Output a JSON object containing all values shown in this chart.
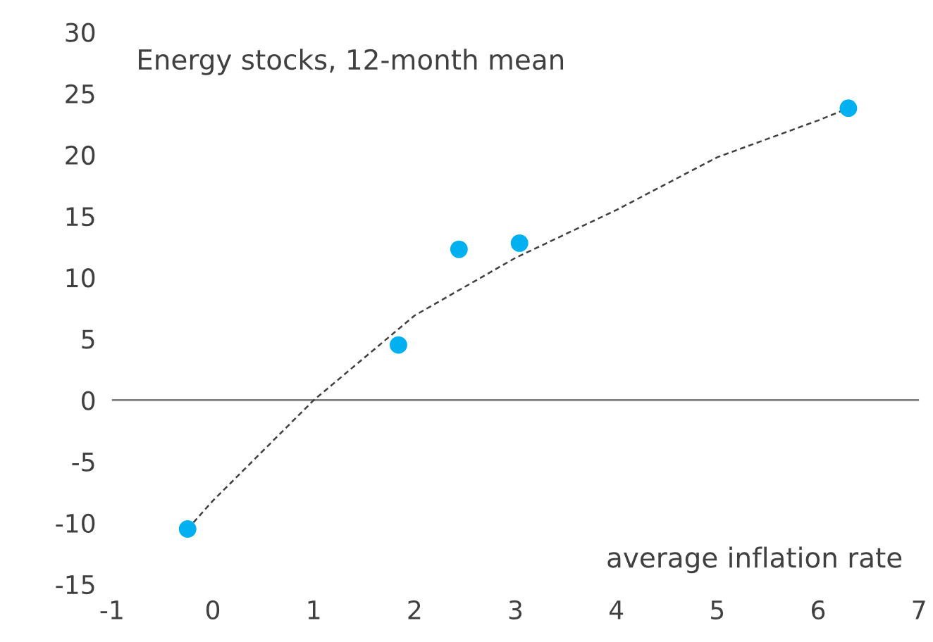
{
  "chart_data": {
    "type": "scatter",
    "title": "Energy stocks, 12-month mean",
    "xlabel": "average inflation rate",
    "series": [
      {
        "color": "#00b0f0",
        "x": [
          -0.25,
          1.84,
          2.44,
          3.04,
          6.3
        ],
        "values": [
          -10.5,
          4.5,
          12.3,
          12.8,
          23.8
        ],
        "marker": "circle"
      },
      {
        "type": "line",
        "color": "#404040",
        "x": [
          -0.25,
          0,
          1,
          2,
          3,
          4,
          5,
          6,
          6.3
        ],
        "values": [
          -10.5,
          -8.2,
          0,
          6.9,
          11.6,
          15.5,
          19.8,
          22.8,
          23.8
        ],
        "line_style": "dashed",
        "marker": "none"
      }
    ],
    "xlim": [
      -1,
      7
    ],
    "xticks": [
      -1,
      0,
      1,
      2,
      3,
      4,
      5,
      6,
      7
    ],
    "ylim": [
      -15,
      30
    ],
    "yticks": [
      -15,
      -10,
      -5,
      0,
      5,
      10,
      15,
      20,
      25,
      30
    ],
    "ref_lines": [
      {
        "axis": "y",
        "value": 0,
        "color": "#7f7f7f"
      }
    ],
    "grid": false,
    "legend": false
  }
}
